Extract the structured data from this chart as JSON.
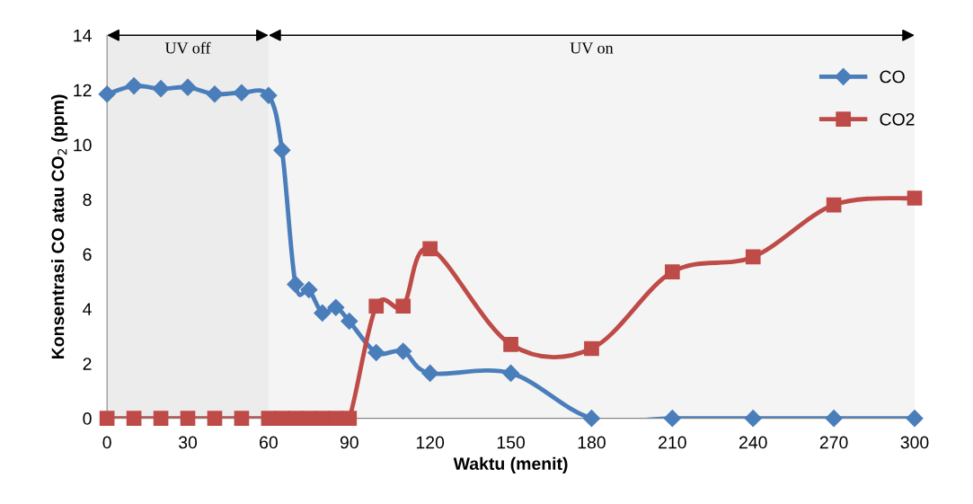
{
  "chart_data": {
    "type": "line",
    "xlabel": "Waktu (menit)",
    "ylabel": "Konsentrasi CO atau CO$_{2}$ (ppm)",
    "xlim": [
      0,
      300
    ],
    "xticks": [
      0,
      30,
      60,
      90,
      120,
      150,
      180,
      210,
      240,
      270,
      300
    ],
    "ylim": [
      0,
      14
    ],
    "yticks": [
      0,
      2,
      4,
      6,
      8,
      10,
      12,
      14
    ],
    "grid": false,
    "legend": "top right",
    "line_style": "solid",
    "bands": [
      {
        "axis": "x",
        "from": 0,
        "to": 60,
        "label": "UV off",
        "color": "#ececec"
      },
      {
        "axis": "x",
        "from": 60,
        "to": 300,
        "label": "UV on",
        "color": "#f4f4f4"
      }
    ],
    "series": [
      {
        "name": "CO",
        "color": "#4a7ebb",
        "marker": "diamond",
        "x": [
          0,
          10,
          20,
          30,
          40,
          50,
          60,
          65,
          70,
          75,
          80,
          85,
          90,
          100,
          110,
          120,
          150,
          180,
          210,
          240,
          270,
          300
        ],
        "values": [
          11.85,
          12.15,
          12.05,
          12.1,
          11.85,
          11.9,
          11.8,
          9.8,
          4.9,
          4.7,
          3.85,
          4.05,
          3.55,
          2.4,
          2.45,
          1.65,
          1.65,
          0,
          0,
          0,
          0,
          0
        ]
      },
      {
        "name": "CO2",
        "color": "#be4b48",
        "marker": "square",
        "x": [
          0,
          10,
          20,
          30,
          40,
          50,
          60,
          65,
          70,
          75,
          80,
          85,
          90,
          100,
          110,
          120,
          150,
          180,
          210,
          240,
          270,
          300
        ],
        "values": [
          0,
          0,
          0,
          0,
          0,
          0,
          0,
          0,
          0,
          0,
          0,
          0,
          0,
          4.1,
          4.1,
          6.2,
          2.7,
          2.55,
          5.35,
          5.9,
          7.8,
          8.05
        ]
      }
    ]
  }
}
